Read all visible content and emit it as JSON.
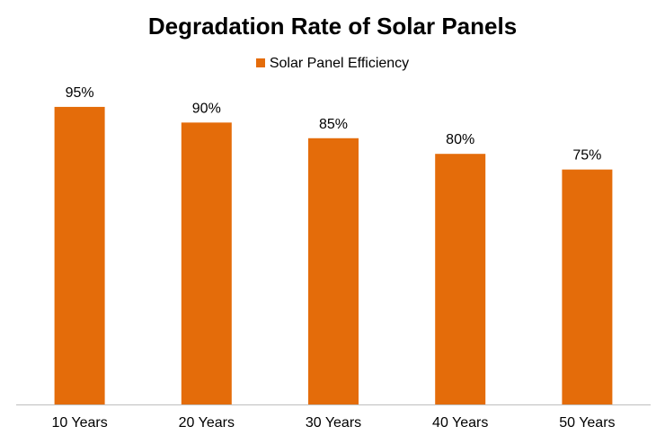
{
  "chart_data": {
    "type": "bar",
    "title": "Degradation Rate of Solar Panels",
    "categories": [
      "10 Years",
      "20 Years",
      "30 Years",
      "40 Years",
      "50 Years"
    ],
    "series": [
      {
        "name": "Solar Panel Efficiency",
        "values": [
          95,
          90,
          85,
          80,
          75
        ],
        "color": "#E46C0A"
      }
    ],
    "data_labels": [
      "95%",
      "90%",
      "85%",
      "80%",
      "75%"
    ],
    "xlabel": "",
    "ylabel": "",
    "grid": false,
    "legend": "top"
  }
}
